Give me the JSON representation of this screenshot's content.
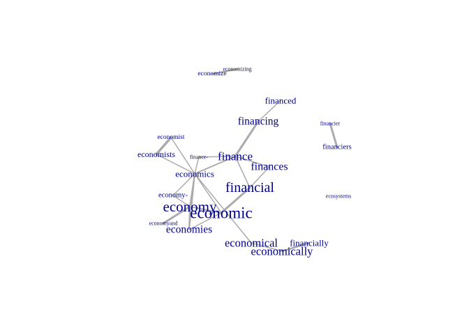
{
  "title": "",
  "chart_data": {
    "type": "network",
    "title": "",
    "text_color": "#00008b",
    "edge_color": "#ababab",
    "nodes": [
      {
        "id": "economizing",
        "label": "economizing"
      },
      {
        "id": "economize",
        "label": "economize"
      },
      {
        "id": "financed",
        "label": "financed"
      },
      {
        "id": "financing",
        "label": "financing"
      },
      {
        "id": "financier",
        "label": "financier"
      },
      {
        "id": "financiers",
        "label": "financiers"
      },
      {
        "id": "economist",
        "label": "economist"
      },
      {
        "id": "economists",
        "label": "economists"
      },
      {
        "id": "finance-",
        "label": "finance-"
      },
      {
        "id": "finance",
        "label": "finance"
      },
      {
        "id": "finances",
        "label": "finances"
      },
      {
        "id": "economics",
        "label": "economics"
      },
      {
        "id": "financial",
        "label": "financial"
      },
      {
        "id": "economy-",
        "label": "economy-"
      },
      {
        "id": "ecosystems",
        "label": "ecosystems"
      },
      {
        "id": "economy",
        "label": "economy"
      },
      {
        "id": "economic",
        "label": "economic"
      },
      {
        "id": "economyand",
        "label": "economyand"
      },
      {
        "id": "economies",
        "label": "economies"
      },
      {
        "id": "economical",
        "label": "economical"
      },
      {
        "id": "financially",
        "label": "financially"
      },
      {
        "id": "economically",
        "label": "economically"
      }
    ],
    "edges": [
      {
        "source": "economizing",
        "target": "economize",
        "weight": 2
      },
      {
        "source": "financed",
        "target": "financing",
        "weight": 1.5
      },
      {
        "source": "financing",
        "target": "finance",
        "weight": 3
      },
      {
        "source": "financier",
        "target": "financiers",
        "weight": 3
      },
      {
        "source": "economist",
        "target": "economists",
        "weight": 3.5
      },
      {
        "source": "economist",
        "target": "economics",
        "weight": 1.5
      },
      {
        "source": "economists",
        "target": "economics",
        "weight": 1.5
      },
      {
        "source": "finance-",
        "target": "economics",
        "weight": 1.5
      },
      {
        "source": "finance",
        "target": "economics",
        "weight": 2
      },
      {
        "source": "finance",
        "target": "finances",
        "weight": 1.5
      },
      {
        "source": "finance",
        "target": "financial",
        "weight": 1.5
      },
      {
        "source": "finance",
        "target": "finance-",
        "weight": 1.5
      },
      {
        "source": "finances",
        "target": "financial",
        "weight": 1.5
      },
      {
        "source": "economics",
        "target": "economy",
        "weight": 2
      },
      {
        "source": "economics",
        "target": "economies",
        "weight": 2
      },
      {
        "source": "economics",
        "target": "economic",
        "weight": 1.5
      },
      {
        "source": "economics",
        "target": "economy-",
        "weight": 1.5
      },
      {
        "source": "economics",
        "target": "economical",
        "weight": 1.5
      },
      {
        "source": "financial",
        "target": "economic",
        "weight": 3
      },
      {
        "source": "economy-",
        "target": "economy",
        "weight": 1.5
      },
      {
        "source": "economy",
        "target": "economic",
        "weight": 2
      },
      {
        "source": "economy",
        "target": "economyand",
        "weight": 3
      },
      {
        "source": "economy",
        "target": "economies",
        "weight": 2
      },
      {
        "source": "economic",
        "target": "economies",
        "weight": 1.5
      },
      {
        "source": "financially",
        "target": "economically",
        "weight": 2.5
      },
      {
        "source": "economical",
        "target": "economically",
        "weight": 1.5
      }
    ]
  }
}
